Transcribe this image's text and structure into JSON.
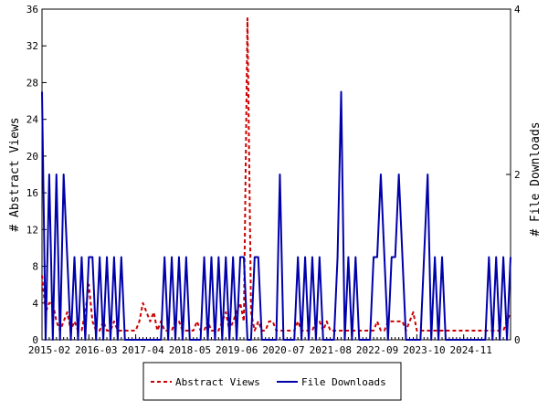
{
  "chart_data": {
    "type": "line",
    "title": "",
    "ylabel_left": "# Abstract Views",
    "ylabel_right": "# File Downloads",
    "ylim_left": [
      0,
      36
    ],
    "ylim_right": [
      0,
      4
    ],
    "yticks_left": [
      0,
      4,
      8,
      12,
      16,
      20,
      24,
      28,
      32,
      36
    ],
    "yticks_right": [
      0,
      2,
      4
    ],
    "x_range_index": [
      0,
      130
    ],
    "xtick_labels": [
      {
        "i": 0,
        "label": "2015-02"
      },
      {
        "i": 13,
        "label": "2016-03"
      },
      {
        "i": 26,
        "label": "2017-04"
      },
      {
        "i": 39,
        "label": "2018-05"
      },
      {
        "i": 52,
        "label": "2019-06"
      },
      {
        "i": 65,
        "label": "2020-07"
      },
      {
        "i": 78,
        "label": "2021-08"
      },
      {
        "i": 91,
        "label": "2022-09"
      },
      {
        "i": 104,
        "label": "2023-10"
      },
      {
        "i": 117,
        "label": "2024-11"
      }
    ],
    "grid": false,
    "legend_position": "bottom",
    "series": [
      {
        "name": "Abstract Views",
        "axis": "left",
        "color": "#cc0000",
        "dash": "dashed",
        "values": [
          7,
          3,
          4,
          4,
          2,
          1,
          2,
          3,
          1,
          2,
          1,
          1,
          3,
          6,
          2,
          1,
          1,
          2,
          1,
          1,
          2,
          1,
          1,
          1,
          1,
          1,
          1,
          2,
          4,
          3,
          2,
          3,
          1,
          2,
          1,
          1,
          1,
          2,
          2,
          1,
          1,
          1,
          1,
          2,
          1,
          1,
          2,
          1,
          1,
          1,
          2,
          3,
          1,
          2,
          3,
          4,
          2,
          35,
          3,
          1,
          2,
          1,
          1,
          2,
          2,
          1,
          1,
          1,
          1,
          1,
          1,
          2,
          1,
          1,
          1,
          1,
          2,
          2,
          1,
          2,
          1,
          1,
          1,
          1,
          1,
          1,
          1,
          1,
          1,
          1,
          1,
          1,
          1,
          2,
          1,
          1,
          2,
          2,
          2,
          2,
          2,
          1,
          2,
          3,
          1,
          1,
          1,
          1,
          1,
          1,
          1,
          1,
          1,
          1,
          1,
          1,
          1,
          1,
          1,
          1,
          1,
          1,
          1,
          1,
          1,
          1,
          1,
          1,
          1,
          2,
          3
        ]
      },
      {
        "name": "File Downloads",
        "axis": "right",
        "color": "#0000aa",
        "dash": "solid",
        "values": [
          3,
          0,
          2,
          0,
          2,
          0,
          2,
          1,
          0,
          1,
          0,
          1,
          0,
          1,
          1,
          0,
          1,
          0,
          1,
          0,
          1,
          0,
          1,
          0,
          0,
          0,
          0,
          0,
          0,
          0,
          0,
          0,
          0,
          0,
          1,
          0,
          1,
          0,
          1,
          0,
          1,
          0,
          0,
          0,
          0,
          1,
          0,
          1,
          0,
          1,
          0,
          1,
          0,
          1,
          0,
          1,
          1,
          0,
          0,
          1,
          1,
          0,
          0,
          0,
          0,
          0,
          2,
          0,
          0,
          0,
          0,
          1,
          0,
          1,
          0,
          1,
          0,
          1,
          0,
          0,
          0,
          0,
          1,
          3,
          0,
          1,
          0,
          1,
          0,
          0,
          0,
          0,
          1,
          1,
          2,
          1,
          0,
          1,
          1,
          2,
          1,
          0,
          0,
          0,
          0,
          0,
          1,
          2,
          0,
          1,
          0,
          1,
          0,
          0,
          0,
          0,
          0,
          0,
          0,
          0,
          0,
          0,
          0,
          0,
          1,
          0,
          1,
          0,
          1,
          0,
          1
        ]
      }
    ]
  }
}
